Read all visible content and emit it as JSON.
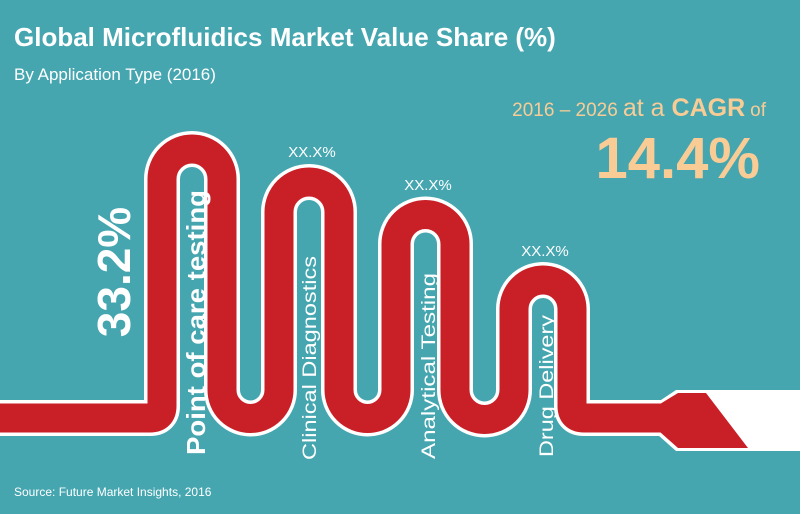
{
  "header": {
    "title": "Global Microfluidics Market Value Share (%)",
    "subtitle": "By Application Type (2016)"
  },
  "cagr": {
    "years": "2016 – 2026",
    "at_a": "at a",
    "cagr_word": "CAGR",
    "of": "of",
    "value": "14.4%"
  },
  "source": "Source: Future Market Insights, 2016",
  "colors": {
    "background": "#45a6b0",
    "pipe": "#c91f27",
    "outline": "#ffffff",
    "accent": "#f9cc96"
  },
  "chart_data": {
    "type": "infographic-pipe",
    "title": "Global Microfluidics Market Value Share (%)",
    "subtitle": "By Application Type (2016)",
    "categories": [
      "Point of care testing",
      "Clinical Diagnostics",
      "Analytical Testing",
      "Drug Delivery"
    ],
    "value_labels": [
      "33.2%",
      "XX.X%",
      "XX.X%",
      "XX.X%"
    ],
    "values": [
      33.2,
      null,
      null,
      null
    ],
    "unit": "%"
  }
}
